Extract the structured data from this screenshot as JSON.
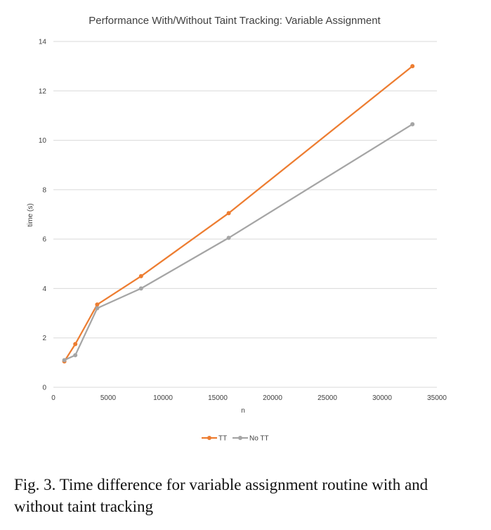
{
  "chart_data": {
    "type": "line",
    "title": "Performance With/Without Taint Tracking: Variable Assignment",
    "xlabel": "n",
    "ylabel": "time (s)",
    "xlim": [
      0,
      35000
    ],
    "ylim": [
      0,
      14
    ],
    "x_ticks": [
      "0",
      "5000",
      "10000",
      "15000",
      "20000",
      "25000",
      "30000",
      "35000"
    ],
    "y_ticks": [
      "0",
      "2",
      "4",
      "6",
      "8",
      "10",
      "12",
      "14"
    ],
    "grid": "horizontal",
    "legend_position": "bottom",
    "series": [
      {
        "name": "TT",
        "color": "#ED7D31",
        "x": [
          1000,
          2000,
          4000,
          8000,
          16000,
          32768
        ],
        "y": [
          1.05,
          1.75,
          3.35,
          4.5,
          7.05,
          13.0
        ]
      },
      {
        "name": "No TT",
        "color": "#A5A5A5",
        "x": [
          1000,
          2000,
          4000,
          8000,
          16000,
          32768
        ],
        "y": [
          1.1,
          1.3,
          3.2,
          4.0,
          6.05,
          10.65
        ]
      }
    ]
  },
  "caption": "Fig. 3.  Time difference for variable assignment routine with and without taint tracking"
}
